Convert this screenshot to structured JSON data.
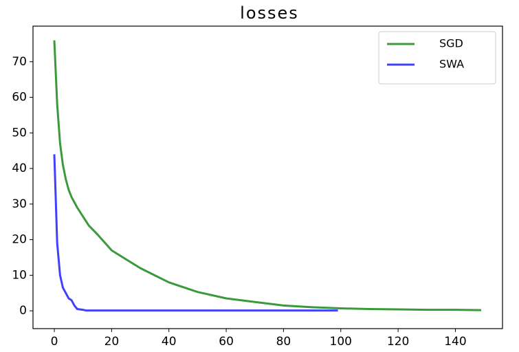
{
  "chart_data": {
    "type": "line",
    "title": "losses",
    "xlim": [
      -7.45,
      156.45
    ],
    "ylim": [
      -5,
      80
    ],
    "xticks": [
      0,
      20,
      40,
      60,
      80,
      100,
      120,
      140
    ],
    "yticks": [
      0,
      10,
      20,
      30,
      40,
      50,
      60,
      70
    ],
    "grid": false,
    "legend": "upper right",
    "series": [
      {
        "name": "SGD",
        "color": "#3a9a3a",
        "x": [
          0,
          1,
          2,
          3,
          4,
          5,
          6,
          8,
          10,
          12,
          15,
          20,
          25,
          30,
          35,
          40,
          50,
          60,
          70,
          80,
          90,
          100,
          110,
          120,
          130,
          140,
          149
        ],
        "values": [
          76,
          58,
          47,
          41,
          37,
          34,
          32,
          29,
          26.5,
          24,
          21.5,
          17,
          14.5,
          12,
          10,
          8,
          5.3,
          3.5,
          2.5,
          1.5,
          1,
          0.7,
          0.5,
          0.4,
          0.3,
          0.3,
          0.2
        ]
      },
      {
        "name": "SWA",
        "color": "#4040ff",
        "x": [
          0,
          1,
          2,
          3,
          4,
          5,
          6,
          7,
          8,
          10,
          11,
          20,
          40,
          60,
          80,
          99
        ],
        "values": [
          44,
          19,
          10,
          6.5,
          5,
          3.5,
          3,
          1.5,
          0.5,
          0.3,
          0.1,
          0.1,
          0.1,
          0.1,
          0.1,
          0.1
        ]
      }
    ]
  }
}
